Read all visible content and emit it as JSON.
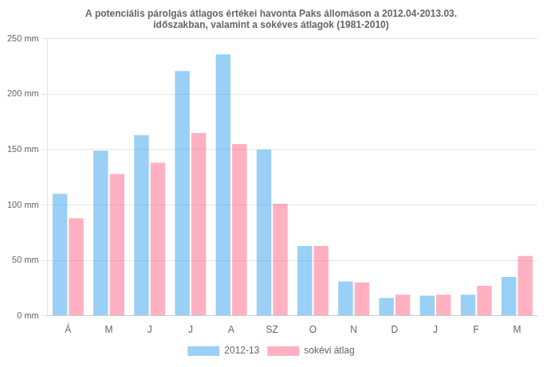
{
  "chart_data": {
    "type": "bar",
    "title": "A potenciális párolgás átlagos értékei havonta Paks állomáson a 2012.04-2013.03.\nidőszakban, valamint a sokéves átlagok (1981-2010)",
    "categories": [
      "Á",
      "M",
      "J",
      "J",
      "A",
      "SZ",
      "O",
      "N",
      "D",
      "J",
      "F",
      "M"
    ],
    "series": [
      {
        "name": "2012-13",
        "values": [
          110,
          149,
          163,
          221,
          236,
          150,
          63,
          31,
          16,
          18,
          19,
          35
        ]
      },
      {
        "name": "sokévi átlag",
        "values": [
          88,
          128,
          138,
          165,
          155,
          101,
          63,
          30,
          19,
          19,
          27,
          54
        ]
      }
    ],
    "ylim": [
      0,
      250
    ],
    "yticks": [
      {
        "value": 0,
        "label": "0 mm"
      },
      {
        "value": 50,
        "label": "50 mm"
      },
      {
        "value": 100,
        "label": "100 mm"
      },
      {
        "value": 150,
        "label": "150 mm"
      },
      {
        "value": 200,
        "label": "200 mm"
      },
      {
        "value": 250,
        "label": "250 mm"
      }
    ],
    "grid": true,
    "legend": "bottom"
  }
}
